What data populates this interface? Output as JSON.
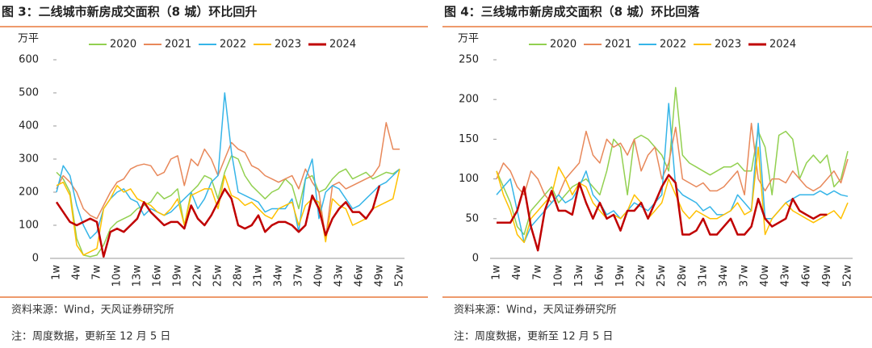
{
  "chart_data": [
    {
      "type": "line",
      "title": "图 3：二线城市新房成交面积（8 城）环比回升",
      "y_label": "万平",
      "source": "资料来源：Wind，天风证券研究所",
      "note": "注：周度数据，更新至 12 月 5 日",
      "categories": [
        "1w",
        null,
        null,
        "4w",
        null,
        null,
        "7w",
        null,
        null,
        "10w",
        null,
        null,
        "13w",
        null,
        null,
        "16w",
        null,
        null,
        "19w",
        null,
        null,
        "22w",
        null,
        null,
        "25w",
        null,
        null,
        "28w",
        null,
        null,
        "31w",
        null,
        null,
        "34w",
        null,
        null,
        "37w",
        null,
        null,
        "40w",
        null,
        null,
        "43w",
        null,
        null,
        "46w",
        null,
        null,
        "49w",
        null,
        null,
        "52w"
      ],
      "ylim": [
        0,
        600
      ],
      "yticks": [
        0,
        100,
        200,
        300,
        400,
        500,
        600
      ],
      "series": [
        {
          "name": "2020",
          "color": "#92D050",
          "width": 1.5,
          "values": [
            260,
            240,
            200,
            60,
            10,
            5,
            10,
            40,
            90,
            110,
            120,
            130,
            150,
            160,
            170,
            200,
            180,
            190,
            210,
            100,
            200,
            220,
            250,
            240,
            180,
            260,
            310,
            300,
            250,
            220,
            200,
            180,
            200,
            210,
            240,
            220,
            150,
            240,
            250,
            200,
            210,
            240,
            260,
            270,
            240,
            250,
            260,
            240,
            250,
            260,
            255,
            270
          ]
        },
        {
          "name": "2021",
          "color": "#E8885A",
          "width": 1.5,
          "values": [
            210,
            250,
            230,
            200,
            150,
            130,
            120,
            160,
            200,
            230,
            240,
            270,
            280,
            285,
            280,
            250,
            260,
            300,
            310,
            220,
            300,
            280,
            330,
            300,
            250,
            300,
            350,
            330,
            320,
            280,
            270,
            250,
            240,
            230,
            240,
            250,
            210,
            270,
            230,
            200,
            60,
            220,
            230,
            210,
            220,
            230,
            240,
            250,
            280,
            410,
            330,
            330
          ]
        },
        {
          "name": "2022",
          "color": "#36B5E8",
          "width": 1.5,
          "values": [
            200,
            280,
            250,
            160,
            100,
            60,
            80,
            150,
            180,
            200,
            210,
            180,
            170,
            130,
            150,
            140,
            130,
            140,
            160,
            180,
            200,
            150,
            180,
            230,
            250,
            500,
            320,
            200,
            190,
            180,
            170,
            140,
            150,
            150,
            150,
            180,
            80,
            240,
            300,
            120,
            200,
            220,
            210,
            180,
            150,
            160,
            180,
            200,
            220,
            230,
            250,
            270
          ]
        },
        {
          "name": "2023",
          "color": "#FFC000",
          "width": 1.5,
          "values": [
            220,
            230,
            190,
            40,
            10,
            20,
            30,
            150,
            180,
            220,
            200,
            210,
            180,
            170,
            160,
            140,
            130,
            150,
            180,
            100,
            190,
            200,
            210,
            210,
            150,
            250,
            190,
            180,
            160,
            170,
            150,
            130,
            120,
            150,
            160,
            170,
            100,
            160,
            180,
            170,
            50,
            180,
            160,
            150,
            100,
            110,
            120,
            150,
            160,
            170,
            180,
            270
          ]
        },
        {
          "name": "2024",
          "color": "#C00000",
          "width": 2.5,
          "values": [
            170,
            140,
            110,
            100,
            110,
            120,
            110,
            5,
            80,
            90,
            80,
            100,
            120,
            170,
            140,
            120,
            100,
            110,
            110,
            90,
            160,
            120,
            100,
            130,
            170,
            210,
            180,
            100,
            90,
            100,
            130,
            80,
            100,
            110,
            110,
            100,
            80,
            100,
            190,
            150,
            70,
            120,
            150,
            170,
            140,
            140,
            120,
            150,
            220,
            null,
            null,
            null
          ]
        }
      ]
    },
    {
      "type": "line",
      "title": "图 4：三线城市新房成交面积（8 城）环比回落",
      "y_label": "万平",
      "source": "资料来源：Wind，天风证券研究所",
      "note": "注：周度数据，更新至 12 月 5 日",
      "categories": [
        "1w",
        null,
        null,
        "4w",
        null,
        null,
        "7w",
        null,
        null,
        "10w",
        null,
        null,
        "13w",
        null,
        null,
        "16w",
        null,
        null,
        "19w",
        null,
        null,
        "22w",
        null,
        null,
        "25w",
        null,
        null,
        "28w",
        null,
        null,
        "31w",
        null,
        null,
        "34w",
        null,
        null,
        "37w",
        null,
        null,
        "40w",
        null,
        null,
        "43w",
        null,
        null,
        "46w",
        null,
        null,
        "49w",
        null,
        null,
        "52w"
      ],
      "ylim": [
        0,
        250
      ],
      "yticks": [
        0,
        50,
        100,
        150,
        200,
        250
      ],
      "series": [
        {
          "name": "2020",
          "color": "#92D050",
          "width": 1.5,
          "values": [
            110,
            90,
            70,
            40,
            30,
            60,
            70,
            80,
            90,
            70,
            80,
            90,
            95,
            100,
            90,
            80,
            110,
            150,
            140,
            80,
            150,
            155,
            150,
            140,
            130,
            110,
            215,
            130,
            120,
            115,
            110,
            105,
            110,
            115,
            115,
            120,
            110,
            110,
            160,
            140,
            80,
            155,
            160,
            150,
            100,
            120,
            130,
            120,
            130,
            90,
            100,
            135
          ]
        },
        {
          "name": "2021",
          "color": "#E8885A",
          "width": 1.5,
          "values": [
            100,
            120,
            110,
            90,
            80,
            110,
            100,
            80,
            70,
            80,
            100,
            110,
            120,
            160,
            130,
            120,
            150,
            140,
            145,
            130,
            150,
            110,
            130,
            140,
            100,
            120,
            165,
            100,
            95,
            90,
            95,
            85,
            85,
            90,
            100,
            110,
            80,
            170,
            100,
            85,
            100,
            100,
            95,
            110,
            100,
            90,
            85,
            90,
            100,
            110,
            95,
            125
          ]
        },
        {
          "name": "2022",
          "color": "#36B5E8",
          "width": 1.5,
          "values": [
            80,
            90,
            100,
            60,
            20,
            40,
            50,
            60,
            70,
            80,
            70,
            75,
            90,
            110,
            80,
            70,
            55,
            60,
            50,
            60,
            70,
            65,
            60,
            70,
            80,
            195,
            90,
            80,
            75,
            70,
            60,
            65,
            55,
            55,
            60,
            80,
            70,
            60,
            170,
            50,
            50,
            60,
            70,
            75,
            80,
            80,
            80,
            85,
            80,
            85,
            80,
            78
          ]
        },
        {
          "name": "2023",
          "color": "#FFC000",
          "width": 1.5,
          "values": [
            110,
            80,
            60,
            30,
            20,
            50,
            60,
            70,
            80,
            115,
            100,
            80,
            95,
            90,
            70,
            60,
            50,
            55,
            50,
            60,
            80,
            70,
            50,
            60,
            70,
            100,
            80,
            60,
            50,
            60,
            55,
            50,
            50,
            55,
            60,
            70,
            55,
            60,
            140,
            30,
            50,
            60,
            70,
            60,
            55,
            50,
            45,
            50,
            55,
            60,
            50,
            70
          ]
        },
        {
          "name": "2024",
          "color": "#C00000",
          "width": 2.5,
          "values": [
            45,
            45,
            45,
            60,
            90,
            40,
            10,
            60,
            85,
            60,
            60,
            55,
            95,
            70,
            50,
            70,
            50,
            55,
            35,
            60,
            60,
            70,
            50,
            70,
            90,
            105,
            95,
            30,
            30,
            35,
            50,
            30,
            30,
            40,
            50,
            30,
            30,
            40,
            75,
            50,
            40,
            45,
            50,
            75,
            60,
            55,
            50,
            55,
            55,
            null,
            null,
            null
          ]
        }
      ]
    }
  ]
}
